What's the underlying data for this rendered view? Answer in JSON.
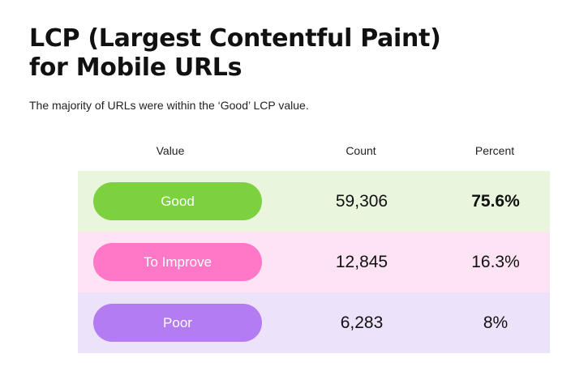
{
  "title_line1": "LCP (Largest Contentful Paint)",
  "title_line2": "for Mobile URLs",
  "subtitle": "The majority of URLs were within the ‘Good’ LCP value.",
  "headers": {
    "value": "Value",
    "count": "Count",
    "percent": "Percent"
  },
  "chart_data": {
    "type": "table",
    "columns": [
      "Value",
      "Count",
      "Percent"
    ],
    "rows": [
      {
        "label": "Good",
        "count": "59,306",
        "percent": "75.6%",
        "count_value": 59306,
        "percent_value": 75.6,
        "pill_color": "#7dd03e",
        "row_bg": "#e9f6dd",
        "emphasis": true
      },
      {
        "label": "To Improve",
        "count": "12,845",
        "percent": "16.3%",
        "count_value": 12845,
        "percent_value": 16.3,
        "pill_color": "#ff78c8",
        "row_bg": "#fde3f3",
        "emphasis": false
      },
      {
        "label": "Poor",
        "count": "6,283",
        "percent": "8%",
        "count_value": 6283,
        "percent_value": 8,
        "pill_color": "#b47cf3",
        "row_bg": "#ece3fb",
        "emphasis": false
      }
    ]
  }
}
